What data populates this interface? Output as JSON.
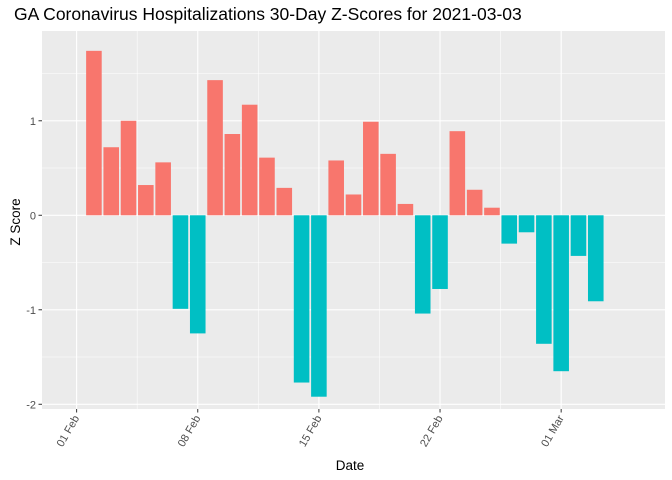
{
  "chart_data": {
    "type": "bar",
    "title": "GA Coronavirus Hospitalizations 30-Day Z-Scores for 2021-03-03",
    "xlabel": "Date",
    "ylabel": "Z Score",
    "ylim": [
      -2.05,
      1.95
    ],
    "xlim": [
      "2021-01-30",
      "2021-03-07"
    ],
    "grid": true,
    "legend": "none",
    "colors": {
      "positive": "#F8766D",
      "negative": "#00BFC4",
      "panel": "#EBEBEB",
      "grid": "#FFFFFF"
    },
    "x_ticks": [
      {
        "date": "2021-02-01",
        "label": "01 Feb"
      },
      {
        "date": "2021-02-08",
        "label": "08 Feb"
      },
      {
        "date": "2021-02-15",
        "label": "15 Feb"
      },
      {
        "date": "2021-02-22",
        "label": "22 Feb"
      },
      {
        "date": "2021-03-01",
        "label": "01 Mar"
      }
    ],
    "y_ticks": [
      {
        "value": -2,
        "label": "-2"
      },
      {
        "value": -1,
        "label": "-1"
      },
      {
        "value": 0,
        "label": "0"
      },
      {
        "value": 1,
        "label": "1"
      }
    ],
    "x": [
      "2021-02-02",
      "2021-02-03",
      "2021-02-04",
      "2021-02-05",
      "2021-02-06",
      "2021-02-07",
      "2021-02-08",
      "2021-02-09",
      "2021-02-10",
      "2021-02-11",
      "2021-02-12",
      "2021-02-13",
      "2021-02-14",
      "2021-02-15",
      "2021-02-16",
      "2021-02-17",
      "2021-02-18",
      "2021-02-19",
      "2021-02-20",
      "2021-02-21",
      "2021-02-22",
      "2021-02-23",
      "2021-02-24",
      "2021-02-25",
      "2021-02-26",
      "2021-02-27",
      "2021-02-28",
      "2021-03-01",
      "2021-03-02",
      "2021-03-03"
    ],
    "values": [
      1.74,
      0.72,
      1.0,
      0.32,
      0.56,
      -0.99,
      -1.25,
      1.43,
      0.86,
      1.17,
      0.61,
      0.29,
      -1.77,
      -1.92,
      0.58,
      0.22,
      0.99,
      0.65,
      0.12,
      -1.04,
      -0.78,
      0.89,
      0.27,
      0.08,
      -0.3,
      -0.18,
      -1.36,
      -1.65,
      -0.43,
      -0.91
    ]
  }
}
